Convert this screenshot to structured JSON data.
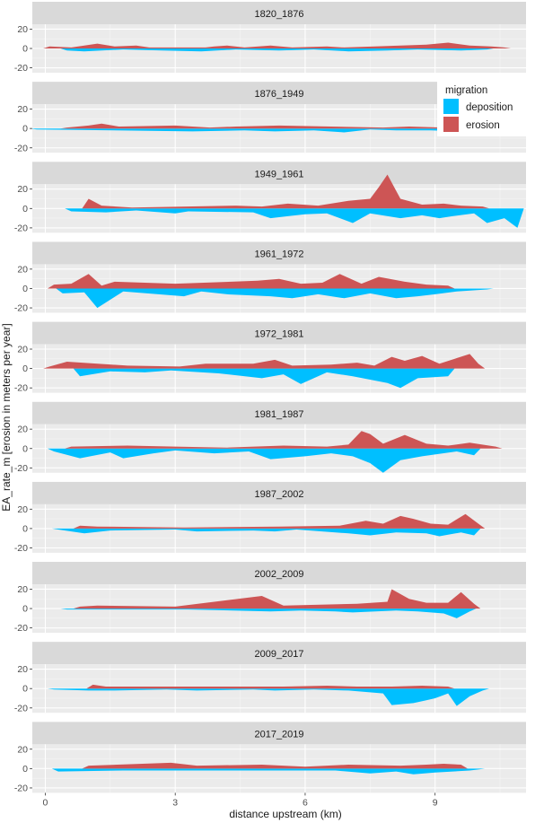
{
  "chart_data": {
    "type": "area",
    "xlabel": "distance upstream (km)",
    "ylabel": "EA_rate_m [erosion in meters per year]",
    "xlim": [
      -0.3,
      11.1
    ],
    "x_ticks": [
      0,
      3,
      6,
      9
    ],
    "x_tick_labels": [
      "0",
      "3",
      "6",
      "9"
    ],
    "ylim": [
      -25,
      25
    ],
    "y_ticks": [
      20,
      0,
      -20
    ],
    "y_tick_labels": [
      "20",
      "0",
      "-20"
    ],
    "grid": true,
    "legend": {
      "title": "migration",
      "placement": "top-right",
      "entries": [
        {
          "label": "deposition",
          "color": "#00BFFF"
        },
        {
          "label": "erosion",
          "color": "#CD5555"
        }
      ]
    },
    "colors": {
      "deposition": "#00BFFF",
      "erosion": "#CD5555"
    },
    "panels": [
      {
        "label": "1820_1876",
        "erosion": [
          [
            0.1,
            2
          ],
          [
            0.6,
            1
          ],
          [
            1.2,
            5
          ],
          [
            1.6,
            2
          ],
          [
            2.1,
            3
          ],
          [
            2.4,
            1
          ],
          [
            3.7,
            1
          ],
          [
            3.9,
            2
          ],
          [
            4.2,
            3
          ],
          [
            4.6,
            1
          ],
          [
            5.2,
            3
          ],
          [
            5.7,
            1
          ],
          [
            6.5,
            2
          ],
          [
            6.9,
            1
          ],
          [
            7.6,
            2
          ],
          [
            8.2,
            3
          ],
          [
            8.8,
            4
          ],
          [
            9.3,
            6
          ],
          [
            9.8,
            3
          ],
          [
            10.3,
            2
          ],
          [
            10.6,
            1
          ]
        ],
        "deposition": [
          [
            0.5,
            -2
          ],
          [
            0.9,
            -3
          ],
          [
            1.8,
            -1
          ],
          [
            2.7,
            -2
          ],
          [
            3.6,
            -3
          ],
          [
            4.4,
            -1
          ],
          [
            5.4,
            -2
          ],
          [
            6.2,
            -1
          ],
          [
            7.0,
            -3
          ],
          [
            7.9,
            -2
          ],
          [
            8.6,
            -1
          ],
          [
            9.6,
            -2
          ],
          [
            10.2,
            -1
          ]
        ]
      },
      {
        "label": "1876_1949",
        "erosion": [
          [
            0.5,
            1
          ],
          [
            1.0,
            3
          ],
          [
            1.3,
            5
          ],
          [
            1.7,
            2
          ],
          [
            3.0,
            3
          ],
          [
            3.8,
            1
          ],
          [
            4.4,
            2
          ],
          [
            5.4,
            3
          ],
          [
            6.6,
            2
          ],
          [
            7.8,
            1
          ],
          [
            8.4,
            2
          ],
          [
            9.2,
            1
          ],
          [
            10.5,
            1
          ]
        ],
        "deposition": [
          [
            -0.2,
            -1
          ],
          [
            3.4,
            -3
          ],
          [
            4.6,
            -2
          ],
          [
            5.3,
            -3
          ],
          [
            6.2,
            -2
          ],
          [
            6.9,
            -4
          ],
          [
            7.5,
            -1
          ],
          [
            8.1,
            -2
          ],
          [
            8.9,
            -2
          ],
          [
            9.6,
            -3
          ],
          [
            10.1,
            -5
          ],
          [
            10.5,
            -1
          ]
        ]
      },
      {
        "label": "1949_1961",
        "erosion": [
          [
            1.0,
            10
          ],
          [
            1.3,
            3
          ],
          [
            2.0,
            1
          ],
          [
            4.4,
            3
          ],
          [
            5.0,
            2
          ],
          [
            5.6,
            5
          ],
          [
            6.3,
            3
          ],
          [
            7.0,
            8
          ],
          [
            7.5,
            10
          ],
          [
            7.7,
            22
          ],
          [
            7.9,
            35
          ],
          [
            8.2,
            10
          ],
          [
            8.7,
            4
          ],
          [
            9.2,
            5
          ],
          [
            9.6,
            3
          ],
          [
            10.1,
            2
          ]
        ],
        "deposition": [
          [
            0.6,
            -3
          ],
          [
            1.4,
            -4
          ],
          [
            2.1,
            -2
          ],
          [
            3.0,
            -5
          ],
          [
            3.3,
            -3
          ],
          [
            4.8,
            -4
          ],
          [
            5.2,
            -10
          ],
          [
            5.6,
            -8
          ],
          [
            6.0,
            -6
          ],
          [
            6.5,
            -5
          ],
          [
            7.1,
            -15
          ],
          [
            7.5,
            -5
          ],
          [
            8.2,
            -10
          ],
          [
            8.7,
            -7
          ],
          [
            9.1,
            -10
          ],
          [
            9.4,
            -8
          ],
          [
            9.9,
            -5
          ],
          [
            10.2,
            -15
          ],
          [
            10.6,
            -10
          ],
          [
            10.9,
            -20
          ]
        ]
      },
      {
        "label": "1961_1972",
        "erosion": [
          [
            0.2,
            4
          ],
          [
            0.6,
            5
          ],
          [
            1.0,
            15
          ],
          [
            1.3,
            3
          ],
          [
            1.6,
            7
          ],
          [
            3.0,
            5
          ],
          [
            4.9,
            8
          ],
          [
            5.4,
            10
          ],
          [
            5.9,
            5
          ],
          [
            6.4,
            6
          ],
          [
            6.8,
            15
          ],
          [
            7.3,
            5
          ],
          [
            7.7,
            12
          ],
          [
            8.3,
            7
          ],
          [
            8.8,
            4
          ],
          [
            9.3,
            3
          ]
        ],
        "deposition": [
          [
            0.4,
            -5
          ],
          [
            0.9,
            -4
          ],
          [
            1.2,
            -20
          ],
          [
            1.8,
            -3
          ],
          [
            3.2,
            -8
          ],
          [
            3.6,
            -3
          ],
          [
            4.2,
            -6
          ],
          [
            5.2,
            -8
          ],
          [
            5.7,
            -10
          ],
          [
            6.3,
            -6
          ],
          [
            6.9,
            -10
          ],
          [
            7.5,
            -5
          ],
          [
            8.1,
            -10
          ],
          [
            8.6,
            -8
          ],
          [
            9.0,
            -6
          ],
          [
            9.5,
            -3
          ],
          [
            10.2,
            -1
          ]
        ]
      },
      {
        "label": "1972_1981",
        "erosion": [
          [
            0.1,
            2
          ],
          [
            0.5,
            7
          ],
          [
            1.9,
            3
          ],
          [
            3.1,
            2
          ],
          [
            3.7,
            5
          ],
          [
            4.8,
            5
          ],
          [
            5.3,
            9
          ],
          [
            5.7,
            3
          ],
          [
            6.6,
            4
          ],
          [
            7.2,
            6
          ],
          [
            7.6,
            3
          ],
          [
            8.0,
            12
          ],
          [
            8.3,
            8
          ],
          [
            8.7,
            13
          ],
          [
            9.1,
            5
          ],
          [
            9.8,
            15
          ],
          [
            10.0,
            5
          ]
        ],
        "deposition": [
          [
            0.8,
            -8
          ],
          [
            1.5,
            -3
          ],
          [
            2.3,
            -4
          ],
          [
            2.9,
            -2
          ],
          [
            4.0,
            -5
          ],
          [
            5.0,
            -10
          ],
          [
            5.5,
            -6
          ],
          [
            5.9,
            -16
          ],
          [
            6.5,
            -4
          ],
          [
            7.1,
            -8
          ],
          [
            7.9,
            -15
          ],
          [
            8.2,
            -20
          ],
          [
            8.6,
            -10
          ],
          [
            9.3,
            -8
          ]
        ]
      },
      {
        "label": "1981_1987",
        "erosion": [
          [
            0.6,
            2
          ],
          [
            1.9,
            3
          ],
          [
            3.0,
            2
          ],
          [
            4.2,
            1
          ],
          [
            5.5,
            3
          ],
          [
            6.5,
            2
          ],
          [
            7.0,
            4
          ],
          [
            7.3,
            18
          ],
          [
            7.5,
            15
          ],
          [
            7.8,
            5
          ],
          [
            8.3,
            14
          ],
          [
            8.8,
            5
          ],
          [
            9.3,
            3
          ],
          [
            9.8,
            6
          ],
          [
            10.4,
            2
          ]
        ],
        "deposition": [
          [
            0.2,
            -3
          ],
          [
            0.8,
            -10
          ],
          [
            1.5,
            -4
          ],
          [
            1.8,
            -10
          ],
          [
            2.5,
            -5
          ],
          [
            3.0,
            -2
          ],
          [
            3.9,
            -5
          ],
          [
            4.7,
            -3
          ],
          [
            5.2,
            -11
          ],
          [
            6.0,
            -8
          ],
          [
            6.6,
            -5
          ],
          [
            7.1,
            -8
          ],
          [
            7.5,
            -15
          ],
          [
            7.8,
            -25
          ],
          [
            8.2,
            -12
          ],
          [
            8.7,
            -8
          ],
          [
            9.5,
            -3
          ],
          [
            9.9,
            -7
          ]
        ]
      },
      {
        "label": "1987_2002",
        "erosion": [
          [
            0.8,
            3
          ],
          [
            1.2,
            2
          ],
          [
            3.2,
            1
          ],
          [
            5.4,
            2
          ],
          [
            6.8,
            3
          ],
          [
            7.4,
            8
          ],
          [
            7.8,
            5
          ],
          [
            8.2,
            13
          ],
          [
            8.5,
            10
          ],
          [
            8.9,
            5
          ],
          [
            9.3,
            4
          ],
          [
            9.7,
            15
          ],
          [
            10.0,
            5
          ]
        ],
        "deposition": [
          [
            0.3,
            -1
          ],
          [
            0.9,
            -5
          ],
          [
            1.5,
            -2
          ],
          [
            3.0,
            -1
          ],
          [
            3.5,
            -3
          ],
          [
            4.8,
            -2
          ],
          [
            5.3,
            -3
          ],
          [
            5.8,
            -1
          ],
          [
            7.0,
            -5
          ],
          [
            7.5,
            -7
          ],
          [
            8.1,
            -4
          ],
          [
            8.8,
            -5
          ],
          [
            9.1,
            -8
          ],
          [
            9.6,
            -4
          ],
          [
            9.9,
            -7
          ]
        ]
      },
      {
        "label": "2002_2009",
        "erosion": [
          [
            0.8,
            2
          ],
          [
            1.2,
            3
          ],
          [
            3.0,
            2
          ],
          [
            5.0,
            13
          ],
          [
            5.5,
            3
          ],
          [
            7.2,
            5
          ],
          [
            7.9,
            7
          ],
          [
            8.0,
            20
          ],
          [
            8.4,
            10
          ],
          [
            8.8,
            6
          ],
          [
            9.3,
            6
          ],
          [
            9.6,
            17
          ],
          [
            9.9,
            5
          ]
        ],
        "deposition": [
          [
            0.5,
            -1
          ],
          [
            2.2,
            -1
          ],
          [
            3.3,
            -1
          ],
          [
            5.2,
            -3
          ],
          [
            5.9,
            -2
          ],
          [
            6.7,
            -3
          ],
          [
            7.1,
            -4
          ],
          [
            8.1,
            -2
          ],
          [
            8.6,
            -3
          ],
          [
            9.2,
            -5
          ],
          [
            9.5,
            -10
          ],
          [
            9.8,
            -3
          ]
        ]
      },
      {
        "label": "2009_2017",
        "erosion": [
          [
            1.1,
            4
          ],
          [
            1.4,
            2
          ],
          [
            3.0,
            2
          ],
          [
            5.5,
            2
          ],
          [
            6.5,
            3
          ],
          [
            7.2,
            2
          ],
          [
            8.0,
            2
          ],
          [
            8.7,
            3
          ],
          [
            9.3,
            2
          ]
        ],
        "deposition": [
          [
            0.2,
            -1
          ],
          [
            1.0,
            -2
          ],
          [
            1.6,
            -2
          ],
          [
            2.8,
            -1
          ],
          [
            3.5,
            -2
          ],
          [
            4.8,
            -1
          ],
          [
            5.3,
            -2
          ],
          [
            6.2,
            -1
          ],
          [
            7.0,
            -2
          ],
          [
            7.8,
            -5
          ],
          [
            8.0,
            -17
          ],
          [
            8.5,
            -15
          ],
          [
            8.8,
            -12
          ],
          [
            9.0,
            -10
          ],
          [
            9.3,
            -5
          ],
          [
            9.5,
            -18
          ],
          [
            9.8,
            -8
          ],
          [
            10.1,
            -2
          ]
        ]
      },
      {
        "label": "2017_2019",
        "erosion": [
          [
            1.0,
            3
          ],
          [
            2.9,
            6
          ],
          [
            3.5,
            3
          ],
          [
            5.0,
            4
          ],
          [
            6.0,
            2
          ],
          [
            7.0,
            4
          ],
          [
            8.2,
            3
          ],
          [
            8.8,
            4
          ],
          [
            9.2,
            5
          ],
          [
            9.6,
            4
          ]
        ],
        "deposition": [
          [
            0.3,
            -3
          ],
          [
            1.8,
            -2
          ],
          [
            3.1,
            -2
          ],
          [
            4.4,
            -2
          ],
          [
            5.6,
            -2
          ],
          [
            6.7,
            -2
          ],
          [
            7.5,
            -5
          ],
          [
            8.1,
            -3
          ],
          [
            8.5,
            -6
          ],
          [
            9.0,
            -4
          ],
          [
            9.8,
            -2
          ],
          [
            10.0,
            -1
          ]
        ]
      }
    ]
  }
}
